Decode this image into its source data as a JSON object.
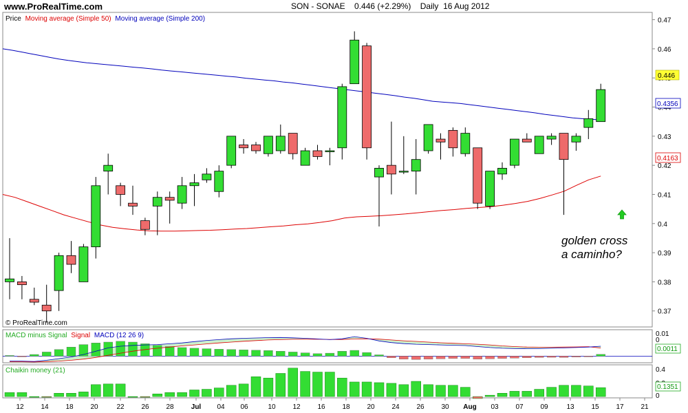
{
  "header": {
    "site": "www.ProRealTime.com",
    "title": "SON - SONAE    0.446 (+2.29%)    Daily  16 Aug 2012"
  },
  "price_panel": {
    "legend": {
      "price": "Price",
      "ma50": "Moving average (Simple 50)",
      "ma200": "Moving average (Simple 200)"
    },
    "copyright": "© ProRealTime.com",
    "annotation": [
      "golden cross",
      "a caminho?"
    ],
    "badges": {
      "last": "0.446",
      "ma200": "0.4356",
      "ma50": "0.4163"
    }
  },
  "macd_panel": {
    "legend": {
      "hist": "MACD minus Signal",
      "signal": "Signal",
      "macd": "MACD (12 26 9)"
    },
    "badge": "0.0011",
    "ticks": [
      "0.01",
      "0"
    ]
  },
  "chaikin_panel": {
    "legend": "Chaikin money (21)",
    "badge": "0.1351",
    "ticks": [
      "0.4",
      "0.2",
      "0"
    ]
  },
  "colors": {
    "up": "#33dd33",
    "down": "#ee6b6b",
    "ma50": "#dd0000",
    "ma200": "#0000bb",
    "last_badge": "#ffff33"
  },
  "chart_data": {
    "type": "candlestick",
    "price_axis": {
      "ticks": [
        "0.47",
        "0.46",
        "0.45",
        "0.44",
        "0.43",
        "0.42",
        "0.41",
        "0.4",
        "0.39",
        "0.38",
        "0.37"
      ],
      "ylim": [
        0.3645,
        0.4725
      ]
    },
    "x_labels": [
      "12",
      "14",
      "18",
      "20",
      "22",
      "26",
      "28",
      "Jul",
      "04",
      "06",
      "10",
      "12",
      "16",
      "18",
      "20",
      "24",
      "26",
      "30",
      "Aug",
      "03",
      "07",
      "09",
      "13",
      "15",
      "17",
      "21"
    ],
    "candles": [
      {
        "o": 0.38,
        "h": 0.395,
        "l": 0.374,
        "c": 0.381
      },
      {
        "o": 0.38,
        "h": 0.382,
        "l": 0.374,
        "c": 0.379
      },
      {
        "o": 0.374,
        "h": 0.378,
        "l": 0.372,
        "c": 0.373
      },
      {
        "o": 0.372,
        "h": 0.379,
        "l": 0.366,
        "c": 0.37
      },
      {
        "o": 0.377,
        "h": 0.39,
        "l": 0.37,
        "c": 0.389
      },
      {
        "o": 0.389,
        "h": 0.394,
        "l": 0.383,
        "c": 0.386
      },
      {
        "o": 0.38,
        "h": 0.393,
        "l": 0.38,
        "c": 0.392
      },
      {
        "o": 0.392,
        "h": 0.416,
        "l": 0.388,
        "c": 0.413
      },
      {
        "o": 0.418,
        "h": 0.424,
        "l": 0.41,
        "c": 0.42
      },
      {
        "o": 0.413,
        "h": 0.414,
        "l": 0.406,
        "c": 0.41
      },
      {
        "o": 0.407,
        "h": 0.413,
        "l": 0.403,
        "c": 0.406
      },
      {
        "o": 0.401,
        "h": 0.402,
        "l": 0.396,
        "c": 0.398
      },
      {
        "o": 0.406,
        "h": 0.411,
        "l": 0.396,
        "c": 0.409
      },
      {
        "o": 0.409,
        "h": 0.411,
        "l": 0.4,
        "c": 0.408
      },
      {
        "o": 0.407,
        "h": 0.416,
        "l": 0.405,
        "c": 0.413
      },
      {
        "o": 0.413,
        "h": 0.417,
        "l": 0.406,
        "c": 0.414
      },
      {
        "o": 0.415,
        "h": 0.419,
        "l": 0.414,
        "c": 0.417
      },
      {
        "o": 0.411,
        "h": 0.42,
        "l": 0.409,
        "c": 0.418
      },
      {
        "o": 0.42,
        "h": 0.43,
        "l": 0.419,
        "c": 0.43
      },
      {
        "o": 0.427,
        "h": 0.429,
        "l": 0.424,
        "c": 0.426
      },
      {
        "o": 0.427,
        "h": 0.428,
        "l": 0.424,
        "c": 0.425
      },
      {
        "o": 0.424,
        "h": 0.43,
        "l": 0.423,
        "c": 0.43
      },
      {
        "o": 0.425,
        "h": 0.434,
        "l": 0.424,
        "c": 0.43
      },
      {
        "o": 0.431,
        "h": 0.431,
        "l": 0.422,
        "c": 0.424
      },
      {
        "o": 0.42,
        "h": 0.426,
        "l": 0.42,
        "c": 0.425
      },
      {
        "o": 0.425,
        "h": 0.427,
        "l": 0.422,
        "c": 0.423
      },
      {
        "o": 0.425,
        "h": 0.426,
        "l": 0.42,
        "c": 0.425
      },
      {
        "o": 0.426,
        "h": 0.448,
        "l": 0.422,
        "c": 0.447
      },
      {
        "o": 0.448,
        "h": 0.466,
        "l": 0.448,
        "c": 0.463
      },
      {
        "o": 0.461,
        "h": 0.462,
        "l": 0.422,
        "c": 0.426
      },
      {
        "o": 0.416,
        "h": 0.42,
        "l": 0.399,
        "c": 0.419
      },
      {
        "o": 0.42,
        "h": 0.435,
        "l": 0.41,
        "c": 0.417
      },
      {
        "o": 0.418,
        "h": 0.43,
        "l": 0.417,
        "c": 0.418
      },
      {
        "o": 0.418,
        "h": 0.429,
        "l": 0.41,
        "c": 0.422
      },
      {
        "o": 0.425,
        "h": 0.434,
        "l": 0.424,
        "c": 0.434
      },
      {
        "o": 0.429,
        "h": 0.431,
        "l": 0.422,
        "c": 0.428
      },
      {
        "o": 0.432,
        "h": 0.433,
        "l": 0.423,
        "c": 0.426
      },
      {
        "o": 0.424,
        "h": 0.433,
        "l": 0.423,
        "c": 0.431
      },
      {
        "o": 0.426,
        "h": 0.426,
        "l": 0.405,
        "c": 0.407
      },
      {
        "o": 0.406,
        "h": 0.418,
        "l": 0.405,
        "c": 0.418
      },
      {
        "o": 0.417,
        "h": 0.421,
        "l": 0.415,
        "c": 0.419
      },
      {
        "o": 0.42,
        "h": 0.429,
        "l": 0.419,
        "c": 0.429
      },
      {
        "o": 0.429,
        "h": 0.431,
        "l": 0.428,
        "c": 0.428
      },
      {
        "o": 0.424,
        "h": 0.43,
        "l": 0.424,
        "c": 0.43
      },
      {
        "o": 0.429,
        "h": 0.431,
        "l": 0.427,
        "c": 0.43
      },
      {
        "o": 0.431,
        "h": 0.431,
        "l": 0.403,
        "c": 0.422
      },
      {
        "o": 0.428,
        "h": 0.431,
        "l": 0.425,
        "c": 0.43
      },
      {
        "o": 0.433,
        "h": 0.439,
        "l": 0.429,
        "c": 0.436
      },
      {
        "o": 0.435,
        "h": 0.448,
        "l": 0.435,
        "c": 0.446
      }
    ],
    "ma200": [
      0.46,
      0.4595,
      0.4589,
      0.4583,
      0.4577,
      0.4571,
      0.4565,
      0.456,
      0.4556,
      0.4552,
      0.4549,
      0.4546,
      0.4543,
      0.454,
      0.4537,
      0.4534,
      0.4531,
      0.4527,
      0.4524,
      0.4521,
      0.4518,
      0.4515,
      0.4512,
      0.4509,
      0.4506,
      0.4503,
      0.4499,
      0.4496,
      0.4493,
      0.449,
      0.4486,
      0.4483,
      0.4479,
      0.4475,
      0.4471,
      0.4467,
      0.4463,
      0.4459,
      0.4455,
      0.4451,
      0.4447,
      0.4443,
      0.4439,
      0.4434,
      0.443,
      0.4425,
      0.442,
      0.4417,
      0.4415,
      0.4412,
      0.4408,
      0.4404,
      0.44,
      0.4396,
      0.4392,
      0.4388,
      0.4384,
      0.438,
      0.4375,
      0.4371,
      0.4367,
      0.4363,
      0.436,
      0.4358,
      0.4356
    ],
    "ma50": [
      0.41,
      0.409,
      0.4075,
      0.406,
      0.4045,
      0.403,
      0.4018,
      0.4006,
      0.3995,
      0.3987,
      0.3982,
      0.3978,
      0.3975,
      0.3974,
      0.3974,
      0.3975,
      0.3976,
      0.3977,
      0.3979,
      0.3981,
      0.3983,
      0.3986,
      0.3989,
      0.3992,
      0.3996,
      0.3999,
      0.4004,
      0.401,
      0.4019,
      0.4023,
      0.4025,
      0.4027,
      0.403,
      0.4033,
      0.4037,
      0.4041,
      0.4045,
      0.4048,
      0.4052,
      0.4055,
      0.4058,
      0.4063,
      0.4069,
      0.4076,
      0.4086,
      0.4098,
      0.4111,
      0.4131,
      0.415,
      0.4163
    ],
    "macd": {
      "ylim": [
        -0.004,
        0.016
      ],
      "hist": [
        0.0004,
        -0.0002,
        0.001,
        0.0025,
        0.004,
        0.0055,
        0.007,
        0.008,
        0.0085,
        0.009,
        0.0085,
        0.0075,
        0.0065,
        0.0058,
        0.0052,
        0.0048,
        0.0045,
        0.0042,
        0.004,
        0.0038,
        0.0036,
        0.0034,
        0.003,
        0.0025,
        0.002,
        0.0015,
        0.0018,
        0.003,
        0.0035,
        0.0022,
        0.0008,
        -0.001,
        -0.0018,
        -0.002,
        -0.0018,
        -0.0016,
        -0.0014,
        -0.0014,
        -0.0018,
        -0.0016,
        -0.0014,
        -0.0012,
        -0.001,
        -0.0008,
        -0.0007,
        -0.0008,
        -0.0005,
        -0.0001,
        0.0011
      ],
      "macd": [
        -0.003,
        -0.003,
        -0.0032,
        -0.0025,
        -0.0015,
        -0.0005,
        0.001,
        0.003,
        0.005,
        0.006,
        0.0065,
        0.0068,
        0.007,
        0.0075,
        0.008,
        0.0088,
        0.0095,
        0.01,
        0.0105,
        0.0108,
        0.011,
        0.0112,
        0.0113,
        0.0111,
        0.0108,
        0.0104,
        0.01,
        0.0105,
        0.0118,
        0.0108,
        0.0092,
        0.0082,
        0.0076,
        0.0072,
        0.007,
        0.0068,
        0.0066,
        0.0064,
        0.0058,
        0.0052,
        0.0048,
        0.0046,
        0.0045,
        0.0046,
        0.0048,
        0.005,
        0.0052,
        0.0055,
        0.006
      ],
      "signal": [
        -0.0034,
        -0.0034,
        -0.0035,
        -0.0033,
        -0.003,
        -0.0025,
        -0.0018,
        -0.0008,
        0.0005,
        0.0018,
        0.003,
        0.004,
        0.0048,
        0.0055,
        0.0062,
        0.0068,
        0.0074,
        0.008,
        0.0085,
        0.009,
        0.0094,
        0.0098,
        0.01,
        0.0102,
        0.0102,
        0.0102,
        0.0101,
        0.0101,
        0.0104,
        0.0105,
        0.0103,
        0.0098,
        0.0093,
        0.0089,
        0.0085,
        0.0081,
        0.0078,
        0.0075,
        0.0072,
        0.0068,
        0.0062,
        0.0058,
        0.0055,
        0.0054,
        0.0054,
        0.0055,
        0.0056,
        0.0057,
        0.0049
      ]
    },
    "chaikin": {
      "ylim": [
        -0.02,
        0.48
      ],
      "values": [
        0.06,
        0.06,
        0.0,
        -0.01,
        0.05,
        0.05,
        0.07,
        0.18,
        0.19,
        0.19,
        0.0,
        -0.01,
        0.04,
        0.06,
        0.06,
        0.1,
        0.11,
        0.13,
        0.17,
        0.19,
        0.3,
        0.28,
        0.35,
        0.43,
        0.38,
        0.37,
        0.37,
        0.28,
        0.22,
        0.22,
        0.21,
        0.2,
        0.18,
        0.23,
        0.18,
        0.17,
        0.17,
        0.14,
        -0.03,
        0.02,
        0.05,
        0.08,
        0.08,
        0.11,
        0.14,
        0.17,
        0.17,
        0.16,
        0.135
      ]
    }
  }
}
